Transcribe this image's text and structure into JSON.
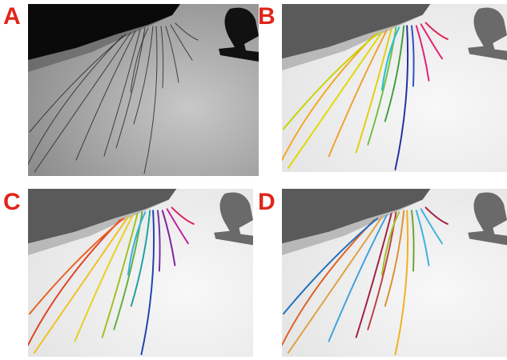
{
  "panels": [
    {
      "label": "A"
    },
    {
      "label": "B"
    },
    {
      "label": "C"
    },
    {
      "label": "D"
    }
  ]
}
